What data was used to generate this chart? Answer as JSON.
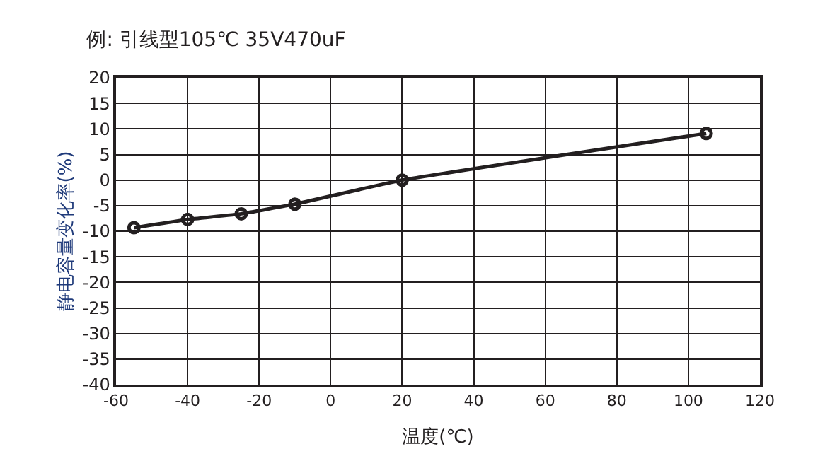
{
  "chart_data": {
    "type": "line",
    "title": "例: 引线型105℃ 35V470uF",
    "xlabel": "温度(℃)",
    "ylabel": "静电容量变化率(%)",
    "x": [
      -55,
      -40,
      -25,
      -10,
      20,
      105
    ],
    "series": [
      {
        "color": "#231f20",
        "values": [
          -9.3,
          -7.7,
          -6.6,
          -4.7,
          0,
          9.1
        ]
      }
    ],
    "xlim": [
      -60,
      120
    ],
    "xticks": [
      -60,
      -40,
      -20,
      0,
      20,
      40,
      60,
      80,
      100,
      120
    ],
    "ylim": [
      -40,
      20
    ],
    "yticks": [
      -40,
      -35,
      -30,
      -25,
      -20,
      -15,
      -10,
      -5,
      0,
      5,
      10,
      15,
      20
    ],
    "grid": true,
    "marker": "circle",
    "line_style": "solid"
  }
}
